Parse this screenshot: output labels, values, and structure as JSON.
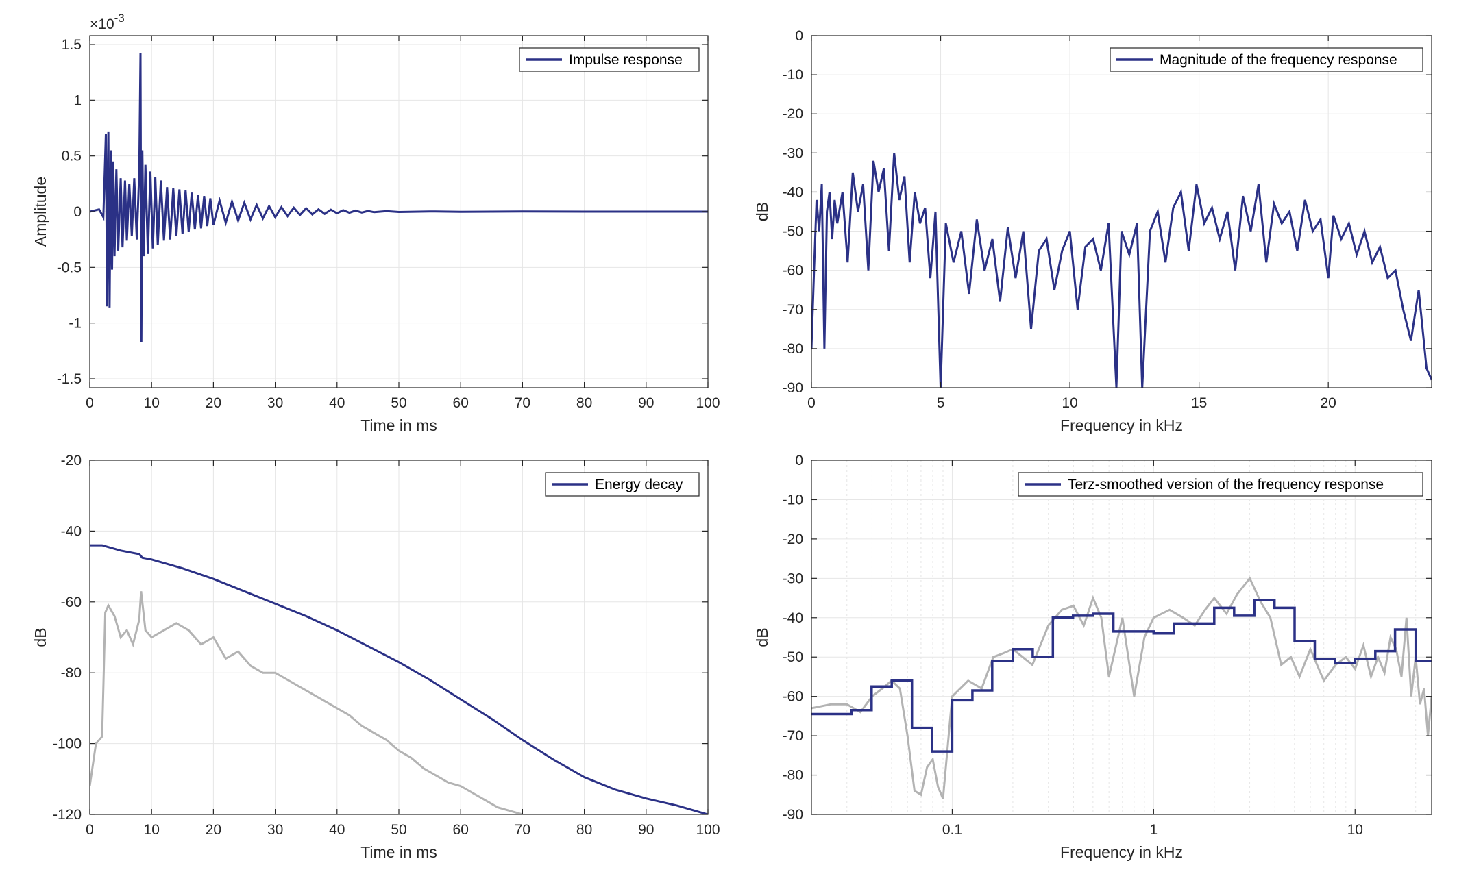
{
  "colors": {
    "series": "#2b3186",
    "raw": "#b3b3b3",
    "grid": "#e6e6e6",
    "axis": "#262626"
  },
  "chart_data": [
    {
      "type": "line",
      "title": "",
      "xlabel": "Time in ms",
      "ylabel": "Amplitude",
      "exponent_label": "×10-3",
      "xlim": [
        0,
        100
      ],
      "ylim": [
        -1.58,
        1.58
      ],
      "xticks": [
        0,
        10,
        20,
        30,
        40,
        50,
        60,
        70,
        80,
        90,
        100
      ],
      "xticklabels": [
        "0",
        "10",
        "20",
        "30",
        "40",
        "50",
        "60",
        "70",
        "80",
        "90",
        "100"
      ],
      "yticks": [
        -1.5,
        -1,
        -0.5,
        0,
        0.5,
        1,
        1.5
      ],
      "yticklabels": [
        "-1.5",
        "-1",
        "-0.5",
        "0",
        "0.5",
        "1",
        "1.5"
      ],
      "grid": true,
      "legend_position": "top-right",
      "series": [
        {
          "name": "Impulse response",
          "x": [
            0,
            1.5,
            2.2,
            2.6,
            2.8,
            3.0,
            3.2,
            3.4,
            3.6,
            3.8,
            4.0,
            4.3,
            4.6,
            5.0,
            5.3,
            5.7,
            6.0,
            6.4,
            6.8,
            7.2,
            7.6,
            8.0,
            8.2,
            8.35,
            8.5,
            8.7,
            9.0,
            9.4,
            9.8,
            10.2,
            10.6,
            11.0,
            11.5,
            12.0,
            12.5,
            13.0,
            13.5,
            14.0,
            14.5,
            15.0,
            15.5,
            16.0,
            16.5,
            17.0,
            17.5,
            18.0,
            18.5,
            19.0,
            19.5,
            20.0,
            21.0,
            22.0,
            23.0,
            24.0,
            25.0,
            26.0,
            27.0,
            28.0,
            29.0,
            30.0,
            31.0,
            32.0,
            33.0,
            34.0,
            35.0,
            36.0,
            37.0,
            38.0,
            39.0,
            40.0,
            41.0,
            42.0,
            43.0,
            44.0,
            45.0,
            46.0,
            48.0,
            50.0,
            55.0,
            60.0,
            70.0,
            80.0,
            90.0,
            100.0
          ],
          "y": [
            0,
            0.02,
            -0.05,
            0.7,
            -0.85,
            0.72,
            -0.86,
            0.55,
            -0.52,
            0.45,
            -0.4,
            0.38,
            -0.35,
            0.3,
            -0.32,
            0.28,
            -0.26,
            0.25,
            -0.22,
            0.3,
            -0.25,
            0.35,
            1.42,
            -1.17,
            0.55,
            -0.4,
            0.42,
            -0.38,
            0.36,
            -0.33,
            0.31,
            -0.3,
            0.28,
            -0.26,
            0.22,
            -0.25,
            0.21,
            -0.22,
            0.2,
            -0.2,
            0.19,
            -0.18,
            0.17,
            -0.16,
            0.15,
            -0.15,
            0.14,
            -0.13,
            0.12,
            -0.12,
            0.1,
            -0.1,
            0.09,
            -0.08,
            0.08,
            -0.07,
            0.06,
            -0.06,
            0.05,
            -0.05,
            0.04,
            -0.04,
            0.035,
            -0.03,
            0.03,
            -0.025,
            0.02,
            -0.02,
            0.018,
            -0.015,
            0.013,
            -0.01,
            0.01,
            -0.008,
            0.006,
            -0.005,
            0.004,
            -0.003,
            0.002,
            -0.001,
            0.001,
            0,
            0,
            0
          ]
        }
      ]
    },
    {
      "type": "line",
      "title": "",
      "xlabel": "Frequency in kHz",
      "ylabel": "dB",
      "xlim": [
        0,
        24
      ],
      "ylim": [
        -90,
        0
      ],
      "xticks": [
        0,
        5,
        10,
        15,
        20
      ],
      "xticklabels": [
        "0",
        "5",
        "10",
        "15",
        "20"
      ],
      "yticks": [
        0,
        -10,
        -20,
        -30,
        -40,
        -50,
        -60,
        -70,
        -80,
        -90
      ],
      "yticklabels": [
        "0",
        "-10",
        "-20",
        "-30",
        "-40",
        "-50",
        "-60",
        "-70",
        "-80",
        "-90"
      ],
      "grid": true,
      "legend_position": "top-right",
      "series": [
        {
          "name": "Magnitude of the frequency response",
          "x": [
            0.0,
            0.1,
            0.2,
            0.3,
            0.4,
            0.5,
            0.6,
            0.7,
            0.8,
            0.9,
            1.0,
            1.2,
            1.4,
            1.6,
            1.8,
            2.0,
            2.2,
            2.4,
            2.6,
            2.8,
            3.0,
            3.2,
            3.4,
            3.6,
            3.8,
            4.0,
            4.2,
            4.4,
            4.6,
            4.8,
            5.0,
            5.2,
            5.5,
            5.8,
            6.1,
            6.4,
            6.7,
            7.0,
            7.3,
            7.6,
            7.9,
            8.2,
            8.5,
            8.8,
            9.1,
            9.4,
            9.7,
            10.0,
            10.3,
            10.6,
            10.9,
            11.2,
            11.5,
            11.8,
            12.0,
            12.3,
            12.6,
            12.8,
            13.1,
            13.4,
            13.7,
            14.0,
            14.3,
            14.6,
            14.9,
            15.2,
            15.5,
            15.8,
            16.1,
            16.4,
            16.7,
            17.0,
            17.3,
            17.6,
            17.9,
            18.2,
            18.5,
            18.8,
            19.1,
            19.4,
            19.7,
            20.0,
            20.2,
            20.5,
            20.8,
            21.1,
            21.4,
            21.7,
            22.0,
            22.3,
            22.6,
            22.9,
            23.2,
            23.5,
            23.8,
            24.0
          ],
          "y": [
            -80,
            -60,
            -42,
            -50,
            -38,
            -80,
            -45,
            -40,
            -52,
            -42,
            -48,
            -40,
            -58,
            -35,
            -45,
            -38,
            -60,
            -32,
            -40,
            -34,
            -55,
            -30,
            -42,
            -36,
            -58,
            -40,
            -48,
            -44,
            -62,
            -45,
            -90,
            -48,
            -58,
            -50,
            -66,
            -47,
            -60,
            -52,
            -68,
            -49,
            -62,
            -50,
            -75,
            -55,
            -52,
            -65,
            -55,
            -50,
            -70,
            -54,
            -52,
            -60,
            -48,
            -90,
            -50,
            -56,
            -48,
            -90,
            -50,
            -45,
            -58,
            -44,
            -40,
            -55,
            -38,
            -48,
            -44,
            -52,
            -45,
            -60,
            -41,
            -50,
            -38,
            -58,
            -43,
            -48,
            -45,
            -55,
            -42,
            -50,
            -47,
            -62,
            -46,
            -52,
            -48,
            -56,
            -50,
            -58,
            -54,
            -62,
            -60,
            -70,
            -78,
            -65,
            -85,
            -88
          ]
        }
      ]
    },
    {
      "type": "line",
      "title": "",
      "xlabel": "Time in ms",
      "ylabel": "dB",
      "xlim": [
        0,
        100
      ],
      "ylim": [
        -120,
        -20
      ],
      "xticks": [
        0,
        10,
        20,
        30,
        40,
        50,
        60,
        70,
        80,
        90,
        100
      ],
      "xticklabels": [
        "0",
        "10",
        "20",
        "30",
        "40",
        "50",
        "60",
        "70",
        "80",
        "90",
        "100"
      ],
      "yticks": [
        -20,
        -40,
        -60,
        -80,
        -100,
        -120
      ],
      "yticklabels": [
        "-20",
        "-40",
        "-60",
        "-80",
        "-100",
        "-120"
      ],
      "grid": true,
      "legend_position": "top-right",
      "series": [
        {
          "name": "Energy decay",
          "x": [
            0,
            2,
            3,
            5,
            8,
            8.5,
            10,
            15,
            20,
            25,
            30,
            35,
            40,
            45,
            50,
            55,
            60,
            65,
            70,
            75,
            80,
            85,
            90,
            95,
            100
          ],
          "y": [
            -44,
            -44,
            -44.5,
            -45.5,
            -46.5,
            -47.5,
            -48,
            -50.5,
            -53.5,
            -57,
            -60.5,
            -64,
            -68,
            -72.5,
            -77,
            -82,
            -87.5,
            -93,
            -99,
            -104.5,
            -109.5,
            -113,
            -115.5,
            -117.5,
            -120
          ]
        },
        {
          "name": "",
          "x": [
            0,
            1,
            2,
            2.5,
            3,
            4,
            5,
            6,
            7,
            8,
            8.3,
            9,
            10,
            12,
            14,
            16,
            18,
            20,
            22,
            24,
            26,
            28,
            30,
            32,
            34,
            36,
            38,
            40,
            42,
            44,
            46,
            48,
            50,
            52,
            54,
            56,
            58,
            60,
            62,
            64,
            66,
            68,
            70
          ],
          "y": [
            -112,
            -100,
            -98,
            -63,
            -61,
            -64,
            -70,
            -68,
            -72,
            -65,
            -57,
            -68,
            -70,
            -68,
            -66,
            -68,
            -72,
            -70,
            -76,
            -74,
            -78,
            -80,
            -80,
            -82,
            -84,
            -86,
            -88,
            -90,
            -92,
            -95,
            -97,
            -99,
            -102,
            -104,
            -107,
            -109,
            -111,
            -112,
            -114,
            -116,
            -118,
            -119,
            -120
          ]
        }
      ]
    },
    {
      "type": "line",
      "title": "",
      "xlabel": "Frequency in kHz",
      "ylabel": "dB",
      "xscale": "log",
      "xlim": [
        0.02,
        24
      ],
      "ylim": [
        -90,
        0
      ],
      "xticks": [
        0.1,
        1,
        10
      ],
      "xticklabels": [
        "0.1",
        "1",
        "10"
      ],
      "yticks": [
        0,
        -10,
        -20,
        -30,
        -40,
        -50,
        -60,
        -70,
        -80,
        -90
      ],
      "yticklabels": [
        "0",
        "-10",
        "-20",
        "-30",
        "-40",
        "-50",
        "-60",
        "-70",
        "-80",
        "-90"
      ],
      "grid": true,
      "legend_position": "top-right",
      "series": [
        {
          "name": "Terz-smoothed version of the frequency response",
          "x": [
            0.02,
            0.0316,
            0.0398,
            0.0501,
            0.0631,
            0.0794,
            0.1,
            0.126,
            0.158,
            0.2,
            0.251,
            0.316,
            0.398,
            0.501,
            0.631,
            0.794,
            1.0,
            1.26,
            1.58,
            2.0,
            2.51,
            3.16,
            3.98,
            5.01,
            6.31,
            7.94,
            10.0,
            12.6,
            15.8,
            20.0,
            24.0
          ],
          "y": [
            -64.5,
            -63.5,
            -57.5,
            -56,
            -68,
            -74,
            -61,
            -58.5,
            -51,
            -48,
            -50,
            -40,
            -39.5,
            -39,
            -43.5,
            -43.5,
            -44,
            -41.5,
            -41.5,
            -37.5,
            -39.5,
            -35.5,
            -37.5,
            -46,
            -50.5,
            -51.5,
            -50.5,
            -48.5,
            -43,
            -51,
            -51
          ]
        },
        {
          "name": "",
          "x": [
            0.02,
            0.025,
            0.03,
            0.035,
            0.04,
            0.045,
            0.05,
            0.055,
            0.06,
            0.065,
            0.07,
            0.075,
            0.08,
            0.085,
            0.09,
            0.1,
            0.12,
            0.14,
            0.16,
            0.18,
            0.2,
            0.25,
            0.3,
            0.35,
            0.4,
            0.45,
            0.5,
            0.55,
            0.6,
            0.7,
            0.8,
            0.9,
            1.0,
            1.2,
            1.4,
            1.6,
            1.8,
            2.0,
            2.3,
            2.6,
            3.0,
            3.4,
            3.8,
            4.3,
            4.8,
            5.3,
            6.0,
            7.0,
            8.0,
            9.0,
            10.0,
            11.0,
            12.0,
            13.0,
            14.0,
            15.0,
            16.0,
            17.0,
            18.0,
            19.0,
            20.0,
            21.0,
            22.0,
            23.0,
            24.0
          ],
          "y": [
            -63,
            -62,
            -62,
            -64,
            -60,
            -58,
            -56,
            -58,
            -70,
            -84,
            -85,
            -78,
            -76,
            -83,
            -86,
            -60,
            -56,
            -58,
            -50,
            -49,
            -48,
            -52,
            -42,
            -38,
            -37,
            -42,
            -35,
            -40,
            -55,
            -40,
            -60,
            -45,
            -40,
            -38,
            -40,
            -42,
            -38,
            -35,
            -39,
            -34,
            -30,
            -36,
            -40,
            -52,
            -50,
            -55,
            -48,
            -56,
            -52,
            -50,
            -53,
            -47,
            -55,
            -50,
            -54,
            -45,
            -48,
            -55,
            -40,
            -60,
            -50,
            -62,
            -58,
            -70,
            -60
          ]
        }
      ]
    }
  ]
}
